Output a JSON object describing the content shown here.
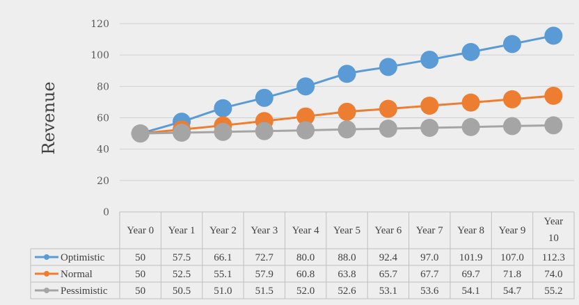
{
  "chart_data": {
    "type": "line",
    "ylabel": "Revenue",
    "ylim": [
      0,
      120
    ],
    "yticks": [
      0,
      20,
      40,
      60,
      80,
      100,
      120
    ],
    "categories": [
      "Year 0",
      "Year 1",
      "Year 2",
      "Year 3",
      "Year 4",
      "Year 5",
      "Year 6",
      "Year 7",
      "Year 8",
      "Year 9",
      "Year 10"
    ],
    "grid": true,
    "legend": "data-table",
    "series": [
      {
        "name": "Optimistic",
        "color": "#5b9bd5",
        "values": [
          50,
          57.5,
          66.1,
          72.7,
          80.0,
          88.0,
          92.4,
          97.0,
          101.9,
          107.0,
          112.3
        ],
        "labels": [
          "50",
          "57.5",
          "66.1",
          "72.7",
          "80.0",
          "88.0",
          "92.4",
          "97.0",
          "101.9",
          "107.0",
          "112.3"
        ]
      },
      {
        "name": "Normal",
        "color": "#ed7d31",
        "values": [
          50,
          52.5,
          55.1,
          57.9,
          60.8,
          63.8,
          65.7,
          67.7,
          69.7,
          71.8,
          74.0
        ],
        "labels": [
          "50",
          "52.5",
          "55.1",
          "57.9",
          "60.8",
          "63.8",
          "65.7",
          "67.7",
          "69.7",
          "71.8",
          "74.0"
        ]
      },
      {
        "name": "Pessimistic",
        "color": "#a5a5a5",
        "values": [
          50,
          50.5,
          51.0,
          51.5,
          52.0,
          52.6,
          53.1,
          53.6,
          54.1,
          54.7,
          55.2
        ],
        "labels": [
          "50",
          "50.5",
          "51.0",
          "51.5",
          "52.0",
          "52.6",
          "53.1",
          "53.6",
          "54.1",
          "54.7",
          "55.2"
        ]
      }
    ]
  }
}
